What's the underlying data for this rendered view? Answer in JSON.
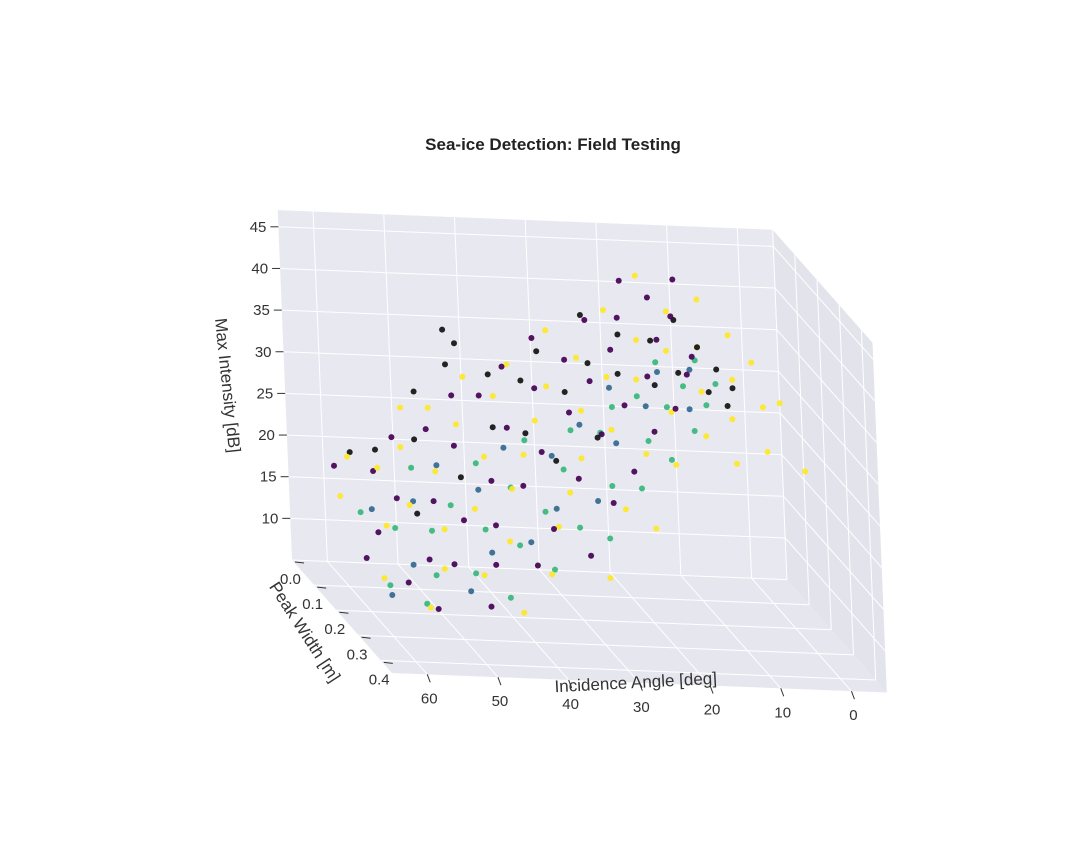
{
  "chart_data": {
    "type": "scatter",
    "projection": "3d",
    "title": "Sea-ice Detection: Field Testing",
    "xlabel": "Incidence Angle [deg]",
    "ylabel": "Peak Width [m]",
    "zlabel": "Max Intensity [dB]",
    "xlim": [
      65,
      -5
    ],
    "ylim": [
      0.0,
      0.45
    ],
    "zlim": [
      5,
      47
    ],
    "xticks": [
      "60",
      "50",
      "40",
      "30",
      "20",
      "10",
      "0"
    ],
    "yticks": [
      "0.0",
      "0.1",
      "0.2",
      "0.3",
      "0.4"
    ],
    "zticks": [
      "10",
      "15",
      "20",
      "25",
      "30",
      "35",
      "40",
      "45"
    ],
    "grid": true,
    "legend": "none",
    "point_colors": [
      "#440154",
      "#31688e",
      "#35b779",
      "#fde725",
      "#111111"
    ],
    "series": [
      {
        "points": [
          [
            61,
            0.22,
            12
          ],
          [
            60,
            0.05,
            18
          ],
          [
            58,
            0.18,
            14
          ],
          [
            57,
            0.28,
            11
          ],
          [
            56,
            0.1,
            19
          ],
          [
            55,
            0.35,
            10
          ],
          [
            54,
            0.14,
            17
          ],
          [
            53,
            0.25,
            13
          ],
          [
            52,
            0.06,
            22
          ],
          [
            51,
            0.3,
            14
          ],
          [
            50,
            0.18,
            18
          ],
          [
            49,
            0.4,
            12
          ],
          [
            48,
            0.09,
            24
          ],
          [
            47,
            0.22,
            17
          ],
          [
            46,
            0.33,
            15
          ],
          [
            45,
            0.12,
            23
          ],
          [
            44,
            0.27,
            18
          ],
          [
            43,
            0.05,
            27
          ],
          [
            42,
            0.19,
            21
          ],
          [
            41,
            0.36,
            16
          ],
          [
            40,
            0.08,
            28
          ],
          [
            39,
            0.24,
            22
          ],
          [
            38,
            0.14,
            26
          ],
          [
            37,
            0.31,
            19
          ],
          [
            36,
            0.06,
            31
          ],
          [
            35,
            0.2,
            25
          ],
          [
            34,
            0.38,
            18
          ],
          [
            33,
            0.11,
            30
          ],
          [
            32,
            0.27,
            24
          ],
          [
            31,
            0.04,
            34
          ],
          [
            30,
            0.17,
            29
          ],
          [
            29,
            0.33,
            23
          ],
          [
            28,
            0.09,
            33
          ],
          [
            27,
            0.22,
            28
          ],
          [
            26,
            0.14,
            32
          ],
          [
            25,
            0.3,
            26
          ],
          [
            24,
            0.06,
            37
          ],
          [
            23,
            0.2,
            31
          ],
          [
            22,
            0.11,
            35
          ],
          [
            21,
            0.27,
            30
          ],
          [
            20,
            0.08,
            38
          ],
          [
            19,
            0.18,
            34
          ],
          [
            18,
            0.03,
            41
          ],
          [
            17,
            0.24,
            32
          ],
          [
            16,
            0.13,
            37
          ],
          [
            15,
            0.06,
            40
          ],
          [
            14,
            0.2,
            35
          ],
          [
            13,
            0.1,
            39
          ],
          [
            12,
            0.16,
            36
          ],
          [
            11,
            0.05,
            42
          ]
        ]
      },
      {
        "points": [
          [
            60,
            0.3,
            10
          ],
          [
            57,
            0.12,
            15
          ],
          [
            55,
            0.24,
            12
          ],
          [
            52,
            0.15,
            17
          ],
          [
            50,
            0.34,
            12
          ],
          [
            47,
            0.1,
            20
          ],
          [
            45,
            0.28,
            15
          ],
          [
            43,
            0.16,
            19
          ],
          [
            40,
            0.3,
            17
          ],
          [
            38,
            0.12,
            23
          ],
          [
            35,
            0.26,
            20
          ],
          [
            33,
            0.18,
            24
          ],
          [
            30,
            0.29,
            22
          ],
          [
            28,
            0.15,
            27
          ],
          [
            25,
            0.22,
            27
          ],
          [
            23,
            0.13,
            31
          ],
          [
            20,
            0.2,
            31
          ],
          [
            17,
            0.16,
            34
          ],
          [
            15,
            0.24,
            32
          ],
          [
            13,
            0.18,
            35
          ]
        ]
      },
      {
        "points": [
          [
            59,
            0.26,
            10
          ],
          [
            58,
            0.1,
            14
          ],
          [
            56,
            0.33,
            10
          ],
          [
            55,
            0.16,
            14
          ],
          [
            53,
            0.28,
            12
          ],
          [
            51,
            0.2,
            15
          ],
          [
            50,
            0.08,
            19
          ],
          [
            48,
            0.3,
            13
          ],
          [
            47,
            0.16,
            17
          ],
          [
            45,
            0.36,
            12
          ],
          [
            44,
            0.22,
            16
          ],
          [
            42,
            0.12,
            21
          ],
          [
            41,
            0.28,
            16
          ],
          [
            39,
            0.18,
            20
          ],
          [
            38,
            0.34,
            15
          ],
          [
            36,
            0.24,
            19
          ],
          [
            35,
            0.12,
            24
          ],
          [
            33,
            0.3,
            19
          ],
          [
            32,
            0.2,
            23
          ],
          [
            30,
            0.34,
            19
          ],
          [
            29,
            0.14,
            26
          ],
          [
            27,
            0.26,
            23
          ],
          [
            26,
            0.18,
            27
          ],
          [
            24,
            0.3,
            24
          ],
          [
            23,
            0.14,
            29
          ],
          [
            21,
            0.24,
            28
          ],
          [
            20,
            0.16,
            31
          ],
          [
            19,
            0.28,
            27
          ],
          [
            17,
            0.2,
            31
          ],
          [
            16,
            0.12,
            34
          ],
          [
            15,
            0.26,
            30
          ],
          [
            14,
            0.18,
            33
          ],
          [
            12,
            0.22,
            32
          ],
          [
            11,
            0.14,
            35
          ],
          [
            10,
            0.2,
            34
          ]
        ]
      },
      {
        "points": [
          [
            62,
            0.14,
            17
          ],
          [
            61,
            0.3,
            12
          ],
          [
            59,
            0.08,
            20
          ],
          [
            58,
            0.22,
            16
          ],
          [
            57,
            0.38,
            11
          ],
          [
            56,
            0.12,
            20
          ],
          [
            54,
            0.2,
            18
          ],
          [
            53,
            0.32,
            14
          ],
          [
            52,
            0.1,
            22
          ],
          [
            51,
            0.26,
            17
          ],
          [
            50,
            0.04,
            25
          ],
          [
            49,
            0.16,
            21
          ],
          [
            48,
            0.34,
            14
          ],
          [
            47,
            0.07,
            26
          ],
          [
            46,
            0.24,
            19
          ],
          [
            45,
            0.42,
            12
          ],
          [
            44,
            0.1,
            25
          ],
          [
            43,
            0.3,
            17
          ],
          [
            42,
            0.16,
            23
          ],
          [
            41,
            0.04,
            29
          ],
          [
            40,
            0.22,
            21
          ],
          [
            39,
            0.36,
            15
          ],
          [
            38,
            0.08,
            28
          ],
          [
            37,
            0.18,
            24
          ],
          [
            36,
            0.3,
            19
          ],
          [
            35,
            0.05,
            31
          ],
          [
            34,
            0.14,
            27
          ],
          [
            33,
            0.26,
            22
          ],
          [
            32,
            0.4,
            16
          ],
          [
            31,
            0.1,
            30
          ],
          [
            30,
            0.22,
            25
          ],
          [
            29,
            0.04,
            35
          ],
          [
            28,
            0.16,
            29
          ],
          [
            27,
            0.32,
            22
          ],
          [
            26,
            0.08,
            33
          ],
          [
            25,
            0.2,
            28
          ],
          [
            24,
            0.36,
            21
          ],
          [
            23,
            0.12,
            32
          ],
          [
            22,
            0.26,
            27
          ],
          [
            21,
            0.05,
            38
          ],
          [
            20,
            0.16,
            33
          ],
          [
            19,
            0.3,
            27
          ],
          [
            18,
            0.1,
            36
          ],
          [
            17,
            0.22,
            31
          ],
          [
            16,
            0.04,
            42
          ],
          [
            15,
            0.14,
            36
          ],
          [
            14,
            0.28,
            30
          ],
          [
            13,
            0.08,
            39
          ],
          [
            12,
            0.2,
            33
          ],
          [
            11,
            0.32,
            28
          ],
          [
            10,
            0.12,
            36
          ],
          [
            9,
            0.24,
            31
          ],
          [
            8,
            0.06,
            40
          ],
          [
            7,
            0.18,
            34
          ],
          [
            6,
            0.3,
            29
          ],
          [
            5,
            0.1,
            37
          ],
          [
            4,
            0.22,
            32
          ],
          [
            3,
            0.14,
            35
          ],
          [
            2,
            0.34,
            28
          ],
          [
            1,
            0.2,
            32
          ]
        ]
      },
      {
        "points": [
          [
            58,
            0.06,
            20
          ],
          [
            55,
            0.08,
            21
          ],
          [
            53,
            0.2,
            17
          ],
          [
            50,
            0.1,
            23
          ],
          [
            48,
            0.04,
            27
          ],
          [
            46,
            0.18,
            21
          ],
          [
            44,
            0.06,
            31
          ],
          [
            43,
            0.02,
            34
          ],
          [
            42,
            0.04,
            33
          ],
          [
            40,
            0.14,
            26
          ],
          [
            38,
            0.06,
            30
          ],
          [
            36,
            0.16,
            26
          ],
          [
            34,
            0.08,
            30
          ],
          [
            33,
            0.2,
            24
          ],
          [
            31,
            0.06,
            33
          ],
          [
            29,
            0.12,
            30
          ],
          [
            27,
            0.2,
            27
          ],
          [
            25,
            0.1,
            33
          ],
          [
            24,
            0.04,
            37
          ],
          [
            22,
            0.14,
            33
          ],
          [
            20,
            0.08,
            36
          ],
          [
            18,
            0.18,
            33
          ],
          [
            16,
            0.1,
            36
          ],
          [
            14,
            0.16,
            34
          ],
          [
            12,
            0.08,
            38
          ],
          [
            11,
            0.2,
            33
          ],
          [
            10,
            0.12,
            36
          ],
          [
            9,
            0.22,
            32
          ],
          [
            8,
            0.14,
            34
          ],
          [
            7,
            0.18,
            33
          ]
        ]
      }
    ]
  }
}
